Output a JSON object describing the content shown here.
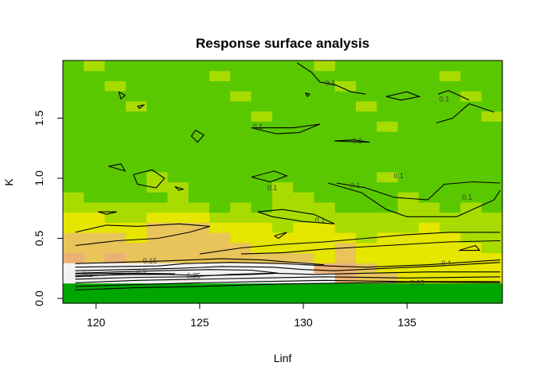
{
  "chart_data": {
    "type": "heatmap",
    "title": "Response surface analysis",
    "xlabel": "Linf",
    "ylabel": "K",
    "xlim": [
      118.4,
      139.6
    ],
    "ylim": [
      -0.04,
      1.98
    ],
    "x_ticks": [
      120,
      125,
      130,
      135
    ],
    "x_tick_labels": [
      "120",
      "125",
      "130",
      "135"
    ],
    "y_ticks": [
      0.0,
      0.5,
      1.0,
      1.5
    ],
    "y_tick_labels": [
      "0.0",
      "0.5",
      "1.0",
      "1.5"
    ],
    "grid": false,
    "legend": "none",
    "colors": {
      "low": "#00a600",
      "mid_low": "#5ac800",
      "mid": "#a8dc00",
      "mid_high": "#e6e600",
      "high_1": "#e8c45a",
      "high_2": "#ecb176",
      "top": "#f2f2f2",
      "contour": "#000000",
      "axis": "#000000"
    },
    "contour_levels": [
      0.05,
      0.1,
      0.15,
      0.2,
      0.25
    ],
    "contour_labels": [
      {
        "text": "0.1",
        "x": 119.6,
        "y": 0.2
      },
      {
        "text": "0.15",
        "x": 122.6,
        "y": 0.31
      },
      {
        "text": "0.2",
        "x": 122.2,
        "y": 0.22
      },
      {
        "text": "0.25",
        "x": 124.7,
        "y": 0.19
      },
      {
        "text": "0.05",
        "x": 135.5,
        "y": 0.13
      },
      {
        "text": "0.1",
        "x": 136.9,
        "y": 0.29
      },
      {
        "text": "0.1",
        "x": 128.5,
        "y": 0.92
      },
      {
        "text": "0.1",
        "x": 127.8,
        "y": 1.43
      },
      {
        "text": "0.1",
        "x": 130.8,
        "y": 0.65
      },
      {
        "text": "0.1",
        "x": 132.6,
        "y": 1.31
      },
      {
        "text": "0.1",
        "x": 132.5,
        "y": 0.94
      },
      {
        "text": "0.1",
        "x": 134.6,
        "y": 1.02
      },
      {
        "text": "0.1",
        "x": 136.8,
        "y": 1.66
      },
      {
        "text": "0.1",
        "x": 137.9,
        "y": 0.84
      },
      {
        "text": "0.1",
        "x": 131.3,
        "y": 1.79
      }
    ]
  }
}
